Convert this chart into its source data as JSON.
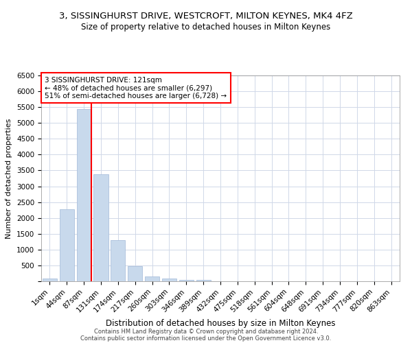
{
  "title": "3, SISSINGHURST DRIVE, WESTCROFT, MILTON KEYNES, MK4 4FZ",
  "subtitle": "Size of property relative to detached houses in Milton Keynes",
  "xlabel": "Distribution of detached houses by size in Milton Keynes",
  "ylabel": "Number of detached properties",
  "footer_line1": "Contains HM Land Registry data © Crown copyright and database right 2024.",
  "footer_line2": "Contains public sector information licensed under the Open Government Licence v3.0.",
  "bar_labels": [
    "1sqm",
    "44sqm",
    "87sqm",
    "131sqm",
    "174sqm",
    "217sqm",
    "260sqm",
    "303sqm",
    "346sqm",
    "389sqm",
    "432sqm",
    "475sqm",
    "518sqm",
    "561sqm",
    "604sqm",
    "648sqm",
    "691sqm",
    "734sqm",
    "777sqm",
    "820sqm",
    "863sqm"
  ],
  "bar_values": [
    80,
    2280,
    5430,
    3380,
    1310,
    480,
    160,
    90,
    45,
    40,
    0,
    0,
    0,
    0,
    0,
    0,
    0,
    0,
    0,
    0,
    0
  ],
  "bar_color": "#c8d9ec",
  "bar_edge_color": "#a0b8d8",
  "grid_color": "#d0d8e8",
  "vline_x_index": 2,
  "vline_color": "red",
  "annotation_line1": "3 SISSINGHURST DRIVE: 121sqm",
  "annotation_line2": "← 48% of detached houses are smaller (6,297)",
  "annotation_line3": "51% of semi-detached houses are larger (6,728) →",
  "annotation_box_color": "white",
  "annotation_box_edge": "red",
  "ylim": [
    0,
    6500
  ],
  "yticks": [
    0,
    500,
    1000,
    1500,
    2000,
    2500,
    3000,
    3500,
    4000,
    4500,
    5000,
    5500,
    6000,
    6500
  ],
  "title_fontsize": 9.5,
  "subtitle_fontsize": 8.5,
  "annotation_fontsize": 7.5,
  "xlabel_fontsize": 8.5,
  "ylabel_fontsize": 8,
  "tick_fontsize": 7.5,
  "footer_fontsize": 6
}
